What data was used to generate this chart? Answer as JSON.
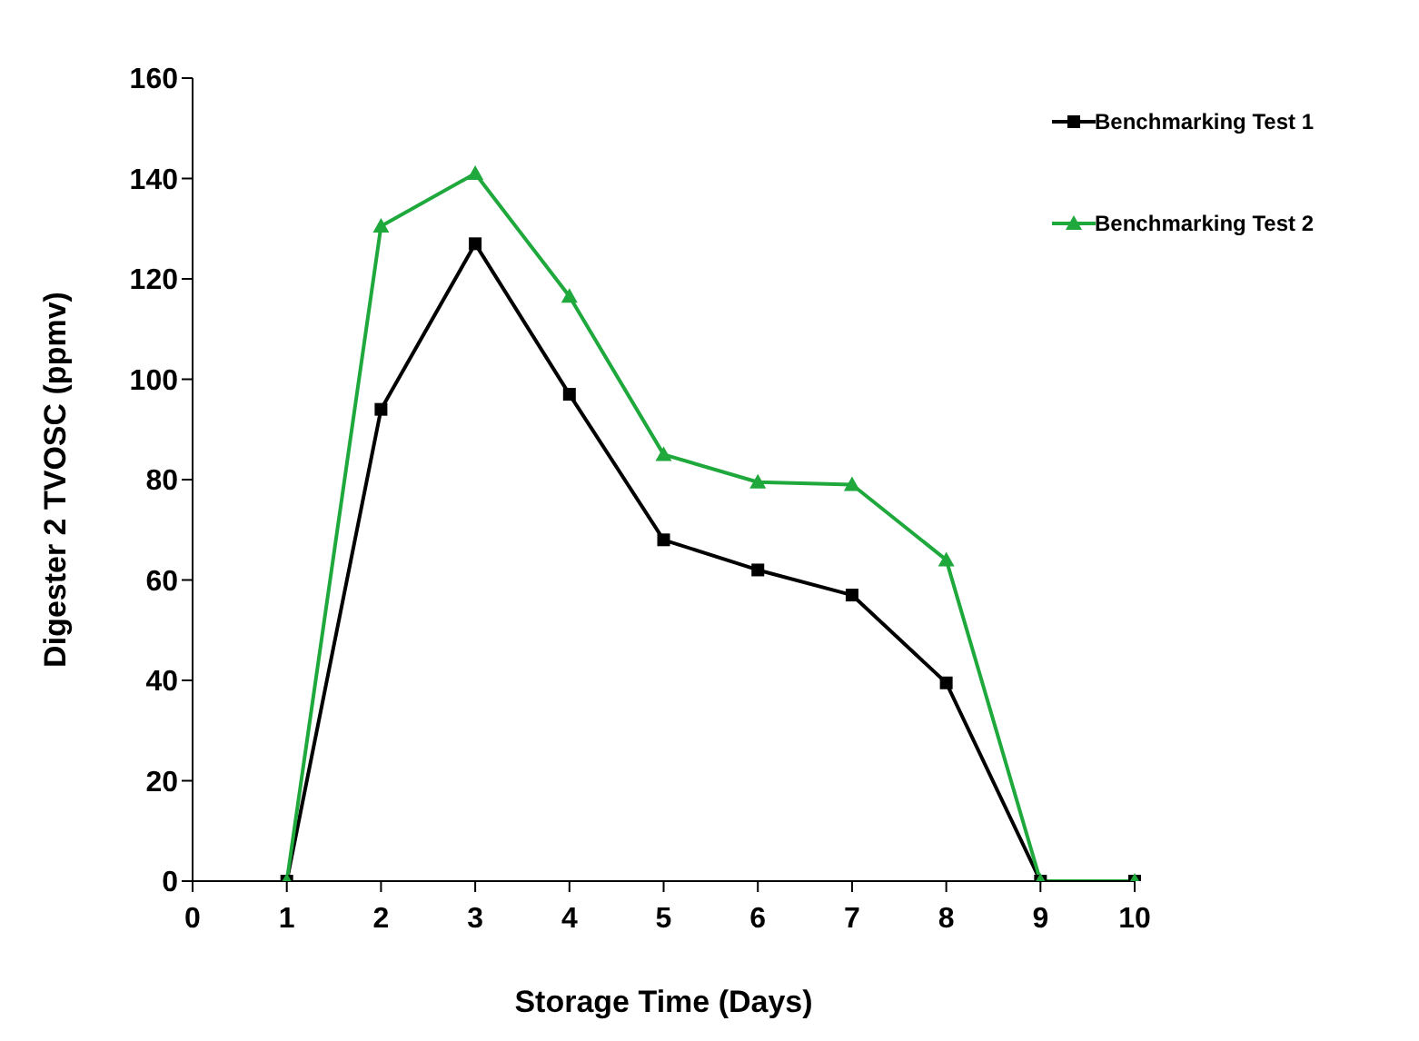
{
  "chart_data": {
    "type": "line",
    "xlabel": "Storage Time (Days)",
    "ylabel": "Digester 2 TVOSC (ppmv)",
    "categories": [
      "0",
      "1",
      "2",
      "3",
      "4",
      "5",
      "6",
      "7",
      "8",
      "9",
      "10"
    ],
    "series": [
      {
        "name": "Benchmarking Test 1",
        "color": "#000000",
        "marker": "square",
        "values": [
          null,
          0,
          94,
          127,
          97,
          68,
          62,
          57,
          39.5,
          0,
          0
        ]
      },
      {
        "name": "Benchmarking Test 2",
        "color": "#1fa83c",
        "marker": "triangle",
        "values": [
          null,
          0,
          130.5,
          141,
          116.5,
          85,
          79.5,
          79,
          64,
          0,
          0
        ]
      }
    ],
    "ylim": [
      0,
      160
    ],
    "yticks": [
      0,
      20,
      40,
      60,
      80,
      100,
      120,
      140,
      160
    ],
    "grid": false,
    "legend": "top right",
    "line_style": "solid"
  }
}
